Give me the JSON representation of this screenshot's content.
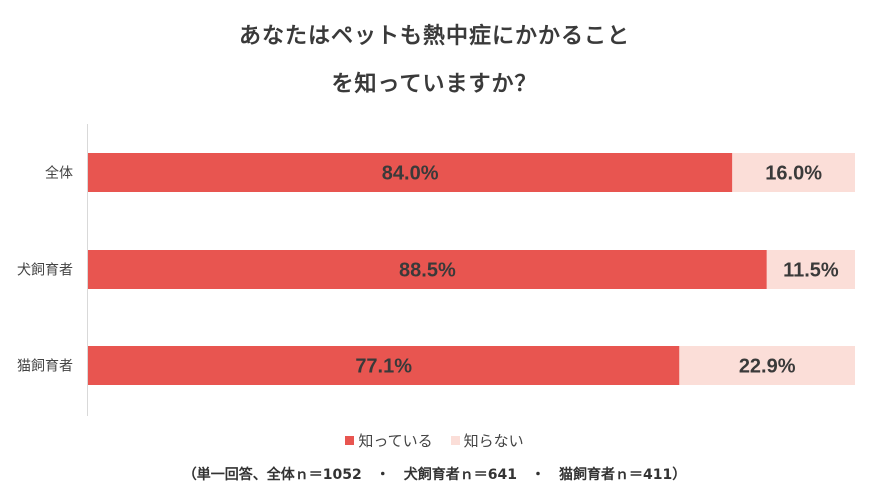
{
  "title_line1": "あなたはペットも熱中症にかかること",
  "title_line2": "を知っていますか？",
  "note": "（単一回答、全体ｎ＝1052　・　犬飼育者ｎ＝641　・　猫飼育者ｎ＝411）",
  "colors": {
    "know": "#e85550",
    "dont_know": "#fbded8",
    "axis": "#d9d9d9"
  },
  "chart_data": {
    "type": "bar",
    "orientation": "horizontal",
    "stacked": true,
    "percent_stacked": true,
    "categories": [
      "全体",
      "犬飼育者",
      "猫飼育者"
    ],
    "series": [
      {
        "name": "知っている",
        "values": [
          84.0,
          88.5,
          77.1
        ],
        "labels": [
          "84.0%",
          "88.5%",
          "77.1%"
        ]
      },
      {
        "name": "知らない",
        "values": [
          16.0,
          11.5,
          22.9
        ],
        "labels": [
          "16.0%",
          "11.5%",
          "22.9%"
        ]
      }
    ],
    "xlim": [
      0,
      100
    ],
    "legend_position": "bottom",
    "grid": false
  }
}
